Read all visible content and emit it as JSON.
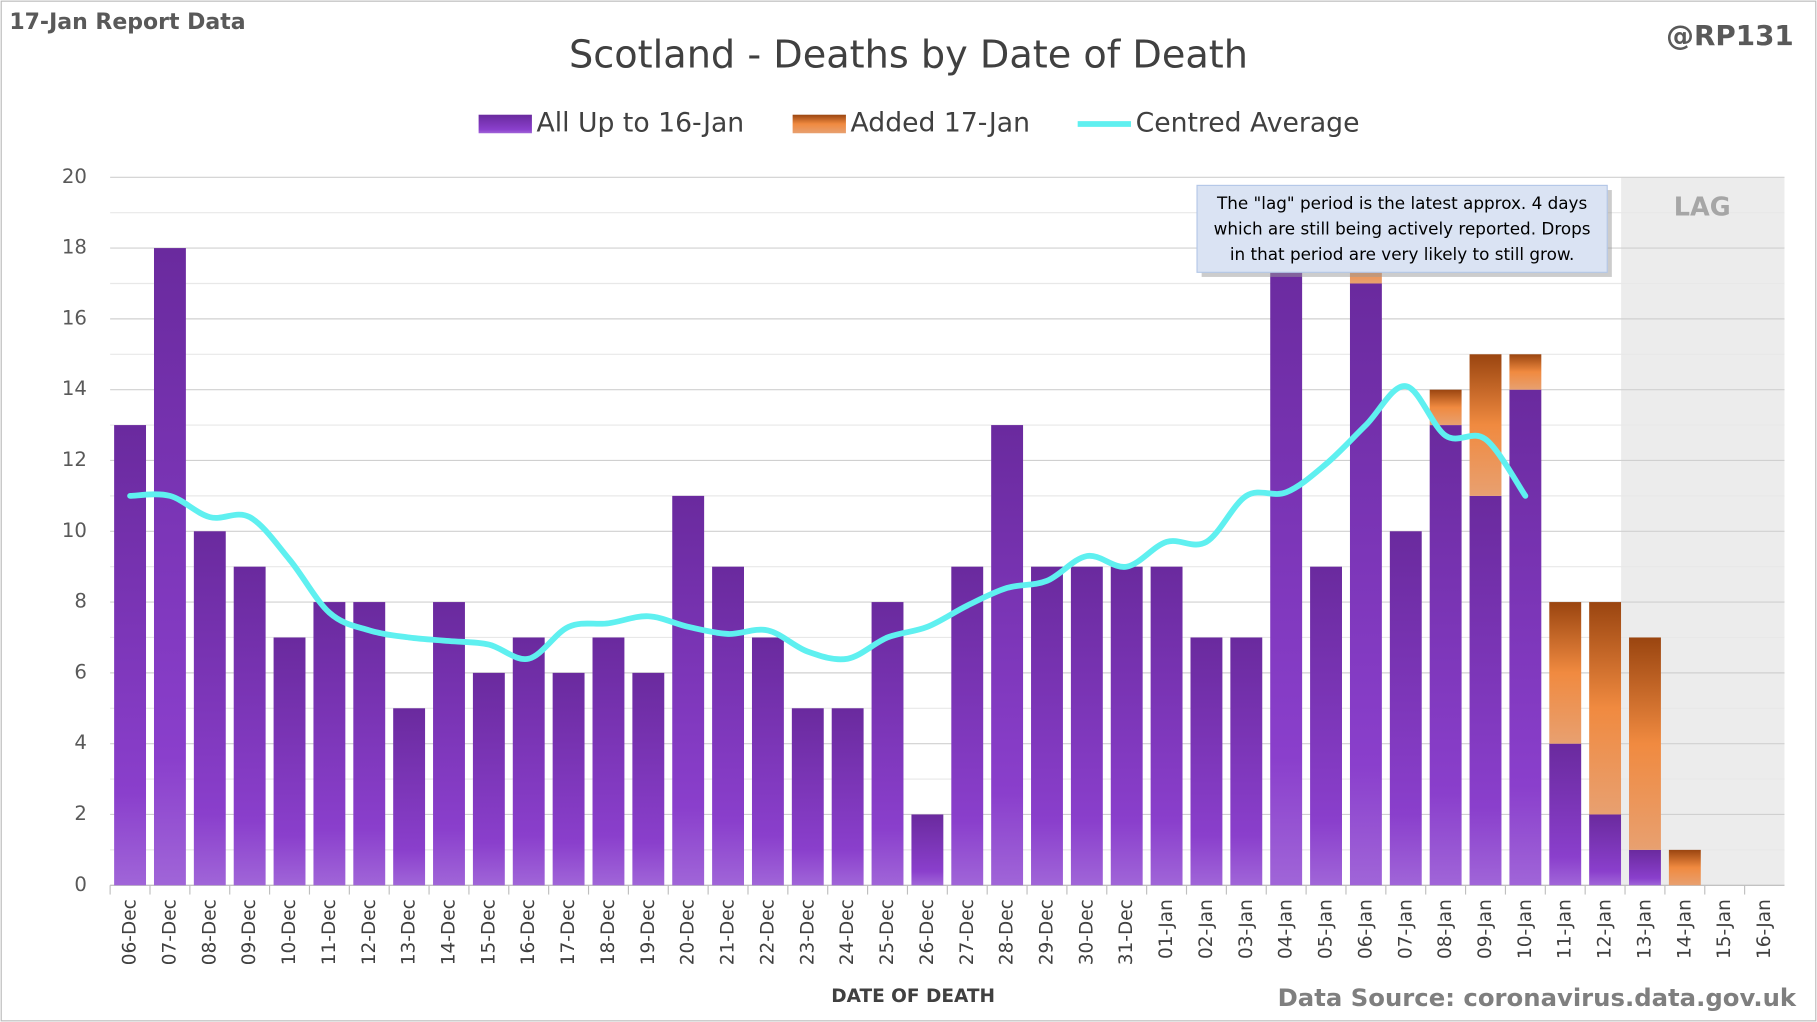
{
  "chart_data": {
    "type": "bar",
    "stacked": true,
    "title": "Scotland - Deaths by Date of Death",
    "corner_left": "17-Jan Report Data",
    "corner_right": "@RP131",
    "x_label": "DATE OF DEATH",
    "source": "Data Source: coronavirus.data.gov.uk",
    "annotation": [
      "The \"lag\" period is the latest approx. 4 days",
      "which are still being actively reported.  Drops",
      "in that period are very likely to still grow."
    ],
    "lag_label": "LAG",
    "categories": [
      "06-Dec",
      "07-Dec",
      "08-Dec",
      "09-Dec",
      "10-Dec",
      "11-Dec",
      "12-Dec",
      "13-Dec",
      "14-Dec",
      "15-Dec",
      "16-Dec",
      "17-Dec",
      "18-Dec",
      "19-Dec",
      "20-Dec",
      "21-Dec",
      "22-Dec",
      "23-Dec",
      "24-Dec",
      "25-Dec",
      "26-Dec",
      "27-Dec",
      "28-Dec",
      "29-Dec",
      "30-Dec",
      "31-Dec",
      "01-Jan",
      "02-Jan",
      "03-Jan",
      "04-Jan",
      "05-Jan",
      "06-Jan",
      "07-Jan",
      "08-Jan",
      "09-Jan",
      "10-Jan",
      "11-Jan",
      "12-Jan",
      "13-Jan",
      "14-Jan",
      "15-Jan",
      "16-Jan"
    ],
    "series": [
      {
        "name": "All Up to 16-Jan",
        "color": "#7a35b5",
        "values": [
          13,
          18,
          10,
          9,
          7,
          8,
          8,
          5,
          8,
          6,
          7,
          6,
          7,
          6,
          11,
          9,
          7,
          5,
          5,
          8,
          2,
          9,
          13,
          9,
          9,
          9,
          9,
          7,
          7,
          18,
          9,
          17,
          10,
          13,
          11,
          14,
          4,
          2,
          1,
          0,
          0,
          0
        ]
      },
      {
        "name": "Added 17-Jan",
        "color": "#e07a30",
        "values": [
          0,
          0,
          0,
          0,
          0,
          0,
          0,
          0,
          0,
          0,
          0,
          0,
          0,
          0,
          0,
          0,
          0,
          0,
          0,
          0,
          0,
          0,
          0,
          0,
          0,
          0,
          0,
          0,
          0,
          0,
          0,
          1,
          0,
          1,
          4,
          1,
          4,
          6,
          6,
          1,
          0,
          0
        ]
      },
      {
        "name": "Centred Average",
        "type": "line",
        "color": "#5ff0f0",
        "values": [
          11,
          11,
          10.4,
          10.4,
          9.2,
          7.7,
          7.2,
          7.0,
          6.9,
          6.8,
          6.4,
          7.3,
          7.4,
          7.6,
          7.3,
          7.1,
          7.2,
          6.6,
          6.4,
          7.0,
          7.3,
          7.9,
          8.4,
          8.6,
          9.3,
          9.0,
          9.7,
          9.7,
          11.0,
          11.1,
          11.9,
          13.0,
          14.1,
          12.7,
          12.6,
          11.0,
          null,
          null,
          null,
          null,
          null,
          null
        ]
      }
    ],
    "ylim": [
      0,
      20
    ],
    "yticks": [
      0,
      2,
      4,
      6,
      8,
      10,
      12,
      14,
      16,
      18,
      20
    ],
    "grid": true
  }
}
